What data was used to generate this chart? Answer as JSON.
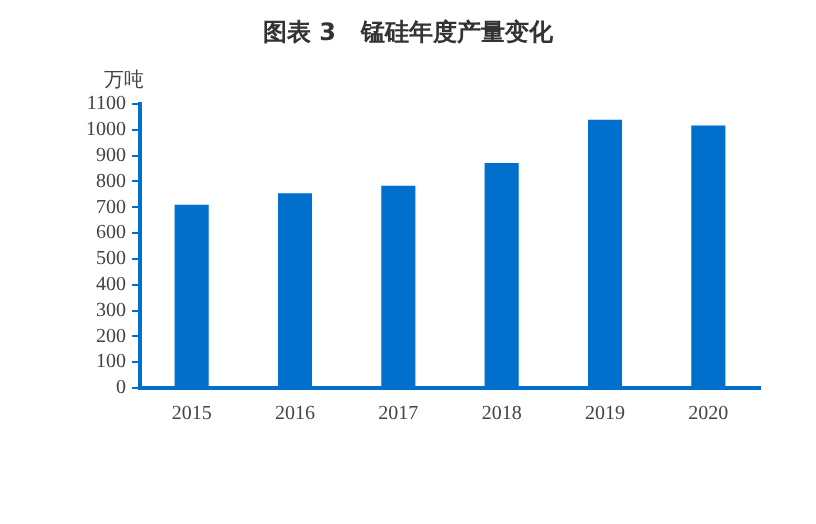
{
  "chart_data": {
    "type": "bar",
    "title": "图表 3   锰硅年度产量变化",
    "ylabel": "万吨",
    "categories": [
      "2015",
      "2016",
      "2017",
      "2018",
      "2019",
      "2020"
    ],
    "values": [
      710,
      754,
      783,
      871,
      1039,
      1017
    ],
    "color": "#0070cc",
    "ylim": [
      0,
      1100
    ],
    "yticks": [
      0,
      100,
      200,
      300,
      400,
      500,
      600,
      700,
      800,
      900,
      1000,
      1100
    ],
    "grid": false,
    "legend": false
  }
}
